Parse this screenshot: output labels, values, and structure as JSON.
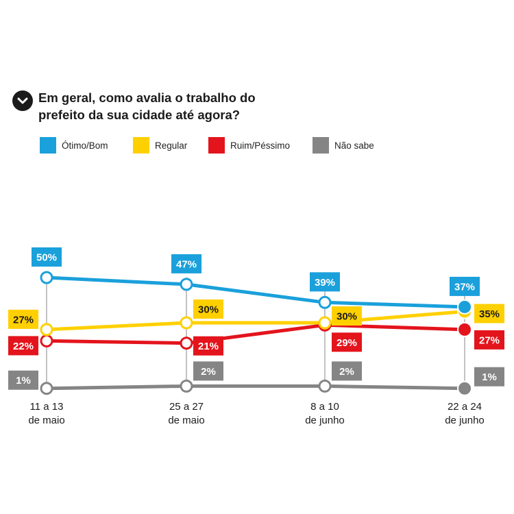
{
  "title": "Em geral, como avalia o trabalho do prefeito da sua cidade até agora?",
  "colors": {
    "otimo": "#1aa0db",
    "regular": "#ffd000",
    "ruim": "#e3141c",
    "nao_sabe": "#858585"
  },
  "chart_data": {
    "type": "line",
    "title": "Em geral, como avalia o trabalho do prefeito da sua cidade até agora?",
    "categories": [
      [
        "11 a 13",
        "de maio"
      ],
      [
        "25 a 27",
        "de maio"
      ],
      [
        "8 a 10",
        "de junho"
      ],
      [
        "22 a 24",
        "de junho"
      ]
    ],
    "series": [
      {
        "name": "Ótimo/Bom",
        "color": "#1aa0db",
        "values": [
          50,
          47,
          39,
          37
        ],
        "labels": [
          "50%",
          "47%",
          "39%",
          "37%"
        ]
      },
      {
        "name": "Regular",
        "color": "#ffd000",
        "values": [
          27,
          30,
          30,
          35
        ],
        "labels": [
          "27%",
          "30%",
          "30%",
          "35%"
        ]
      },
      {
        "name": "Ruim/Péssimo",
        "color": "#e3141c",
        "values": [
          22,
          21,
          29,
          27
        ],
        "labels": [
          "22%",
          "21%",
          "29%",
          "27%"
        ]
      },
      {
        "name": "Não sabe",
        "color": "#858585",
        "values": [
          1,
          2,
          2,
          1
        ],
        "labels": [
          "1%",
          "2%",
          "2%",
          "1%"
        ]
      }
    ],
    "legend_position": "top-left",
    "grid": false
  }
}
